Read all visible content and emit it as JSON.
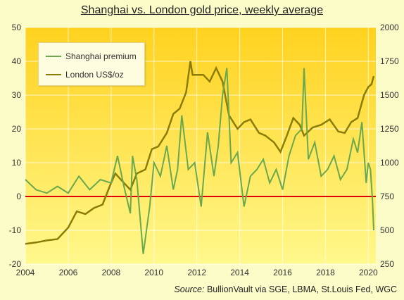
{
  "title": "Shanghai vs. London gold price, weekly average",
  "source_label": "Source:",
  "source_text": " BullionVault via SGE, LBMA, St.Louis Fed, WGC",
  "colors": {
    "shanghai": "#6aa84f",
    "london": "#8a7c05",
    "zero_line": "#e00000",
    "bg_top": "#ffd21f",
    "bg_bottom": "#fff88c"
  },
  "chart_data": {
    "type": "line",
    "title": "Shanghai vs. London gold price, weekly average",
    "x_ticks": [
      "2004",
      "2006",
      "2008",
      "2010",
      "2012",
      "2014",
      "2016",
      "2018",
      "2020"
    ],
    "y_left_ticks": [
      "-20",
      "-10",
      "0",
      "10",
      "20",
      "30",
      "40",
      "50"
    ],
    "y_right_ticks": [
      "250",
      "500",
      "750",
      "1000",
      "1250",
      "1500",
      "1750",
      "2000"
    ],
    "xlim": [
      2004,
      2020.35
    ],
    "ylim_left": [
      -20,
      50
    ],
    "ylim_right": [
      250,
      2000
    ],
    "legend_placement": "top-left",
    "series": [
      {
        "name": "Shanghai premium",
        "axis": "left",
        "x": [
          2004.0,
          2004.5,
          2005.0,
          2005.5,
          2006.0,
          2006.5,
          2007.0,
          2007.5,
          2008.0,
          2008.3,
          2008.6,
          2008.9,
          2009.0,
          2009.2,
          2009.5,
          2009.8,
          2010.0,
          2010.3,
          2010.6,
          2010.9,
          2011.1,
          2011.3,
          2011.6,
          2011.9,
          2012.2,
          2012.5,
          2012.8,
          2013.0,
          2013.2,
          2013.4,
          2013.6,
          2013.9,
          2014.2,
          2014.5,
          2014.8,
          2015.1,
          2015.4,
          2015.7,
          2016.0,
          2016.3,
          2016.6,
          2016.9,
          2017.0,
          2017.2,
          2017.5,
          2017.8,
          2018.1,
          2018.4,
          2018.7,
          2019.0,
          2019.3,
          2019.5,
          2019.7,
          2019.9,
          2020.0,
          2020.1,
          2020.2,
          2020.25
        ],
        "y": [
          5,
          2,
          1,
          3,
          1,
          6,
          2,
          5,
          4,
          12,
          3,
          -5,
          12,
          5,
          -17,
          -3,
          10,
          6,
          15,
          2,
          8,
          24,
          8,
          10,
          -3,
          19,
          6,
          15,
          30,
          38,
          10,
          13,
          -3,
          6,
          8,
          11,
          4,
          8,
          2,
          12,
          18,
          20,
          38,
          11,
          16,
          6,
          8,
          12,
          5,
          8,
          17,
          13,
          22,
          4,
          10,
          8,
          -2,
          -10
        ]
      },
      {
        "name": "London US$/oz",
        "axis": "right",
        "x": [
          2004.0,
          2004.5,
          2005.0,
          2005.5,
          2006.0,
          2006.4,
          2006.8,
          2007.2,
          2007.6,
          2008.0,
          2008.2,
          2008.6,
          2008.9,
          2009.2,
          2009.6,
          2009.9,
          2010.2,
          2010.6,
          2010.9,
          2011.2,
          2011.5,
          2011.7,
          2011.8,
          2012.0,
          2012.3,
          2012.6,
          2012.9,
          2013.2,
          2013.5,
          2013.9,
          2014.2,
          2014.5,
          2014.9,
          2015.2,
          2015.6,
          2015.9,
          2016.2,
          2016.5,
          2016.8,
          2017.0,
          2017.4,
          2017.8,
          2018.2,
          2018.6,
          2018.9,
          2019.2,
          2019.5,
          2019.8,
          2020.0,
          2020.15,
          2020.25
        ],
        "y": [
          400,
          410,
          425,
          435,
          520,
          640,
          620,
          665,
          690,
          850,
          920,
          850,
          800,
          920,
          950,
          1100,
          1120,
          1220,
          1360,
          1400,
          1520,
          1750,
          1650,
          1650,
          1650,
          1600,
          1700,
          1600,
          1350,
          1250,
          1300,
          1320,
          1220,
          1200,
          1150,
          1080,
          1200,
          1330,
          1280,
          1200,
          1260,
          1280,
          1320,
          1230,
          1220,
          1300,
          1330,
          1500,
          1560,
          1580,
          1640
        ]
      }
    ]
  }
}
